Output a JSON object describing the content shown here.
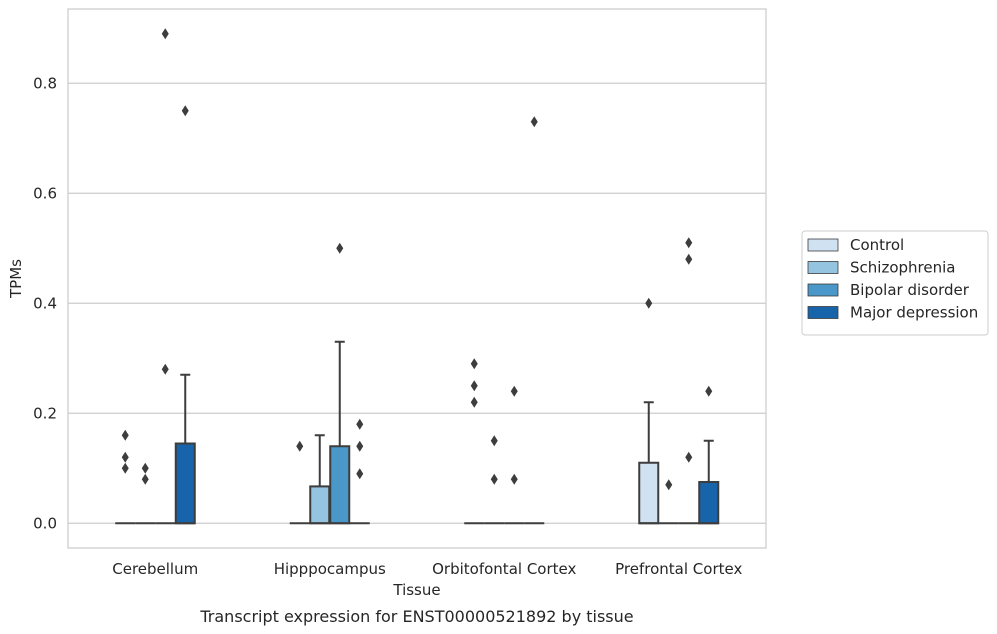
{
  "chart_data": {
    "type": "box",
    "title": "Transcript expression for ENST00000521892 by tissue",
    "xlabel": "Tissue",
    "ylabel": "TPMs",
    "ylim": [
      -0.045,
      0.935
    ],
    "yticks": [
      0.0,
      0.2,
      0.4,
      0.6,
      0.8
    ],
    "ytick_labels": [
      "0.0",
      "0.2",
      "0.4",
      "0.6",
      "0.8"
    ],
    "grid": "horizontal",
    "legend_position": "right",
    "categories": [
      "Cerebellum",
      "Hipppocampus",
      "Orbitofontal Cortex",
      "Prefrontal Cortex"
    ],
    "series": [
      {
        "name": "Control",
        "color": "#d0e1f2",
        "boxes": [
          {
            "q1": 0,
            "median": 0,
            "q3": 0,
            "whisker_low": 0,
            "whisker_high": 0,
            "outliers": [
              0.1,
              0.12,
              0.16
            ]
          },
          {
            "q1": 0,
            "median": 0,
            "q3": 0,
            "whisker_low": 0,
            "whisker_high": 0,
            "outliers": [
              0.14
            ]
          },
          {
            "q1": 0,
            "median": 0,
            "q3": 0,
            "whisker_low": 0,
            "whisker_high": 0,
            "outliers": [
              0.22,
              0.25,
              0.29
            ]
          },
          {
            "q1": 0,
            "median": 0,
            "q3": 0.11,
            "whisker_low": 0,
            "whisker_high": 0.22,
            "outliers": [
              0.4
            ]
          }
        ]
      },
      {
        "name": "Schizophrenia",
        "color": "#94c4df",
        "boxes": [
          {
            "q1": 0,
            "median": 0,
            "q3": 0,
            "whisker_low": 0,
            "whisker_high": 0,
            "outliers": [
              0.08,
              0.1
            ]
          },
          {
            "q1": 0,
            "median": 0,
            "q3": 0.067,
            "whisker_low": 0,
            "whisker_high": 0.16,
            "outliers": []
          },
          {
            "q1": 0,
            "median": 0,
            "q3": 0,
            "whisker_low": 0,
            "whisker_high": 0,
            "outliers": [
              0.08,
              0.15
            ]
          },
          {
            "q1": 0,
            "median": 0,
            "q3": 0,
            "whisker_low": 0,
            "whisker_high": 0,
            "outliers": [
              0.07
            ]
          }
        ]
      },
      {
        "name": "Bipolar disorder",
        "color": "#4a98c9",
        "boxes": [
          {
            "q1": 0,
            "median": 0,
            "q3": 0,
            "whisker_low": 0,
            "whisker_high": 0,
            "outliers": [
              0.28,
              0.89
            ]
          },
          {
            "q1": 0,
            "median": 0,
            "q3": 0.14,
            "whisker_low": 0,
            "whisker_high": 0.33,
            "outliers": [
              0.5
            ]
          },
          {
            "q1": 0,
            "median": 0,
            "q3": 0,
            "whisker_low": 0,
            "whisker_high": 0,
            "outliers": [
              0.08,
              0.24
            ]
          },
          {
            "q1": 0,
            "median": 0,
            "q3": 0,
            "whisker_low": 0,
            "whisker_high": 0,
            "outliers": [
              0.12,
              0.48,
              0.51
            ]
          }
        ]
      },
      {
        "name": "Major depression",
        "color": "#1764ab",
        "boxes": [
          {
            "q1": 0,
            "median": 0,
            "q3": 0.145,
            "whisker_low": 0,
            "whisker_high": 0.27,
            "outliers": [
              0.75
            ]
          },
          {
            "q1": 0,
            "median": 0,
            "q3": 0,
            "whisker_low": 0,
            "whisker_high": 0,
            "outliers": [
              0.09,
              0.14,
              0.18
            ]
          },
          {
            "q1": 0,
            "median": 0,
            "q3": 0,
            "whisker_low": 0,
            "whisker_high": 0,
            "outliers": [
              0.73
            ]
          },
          {
            "q1": 0,
            "median": 0,
            "q3": 0.075,
            "whisker_low": 0,
            "whisker_high": 0.15,
            "outliers": [
              0.24
            ]
          }
        ]
      }
    ]
  }
}
